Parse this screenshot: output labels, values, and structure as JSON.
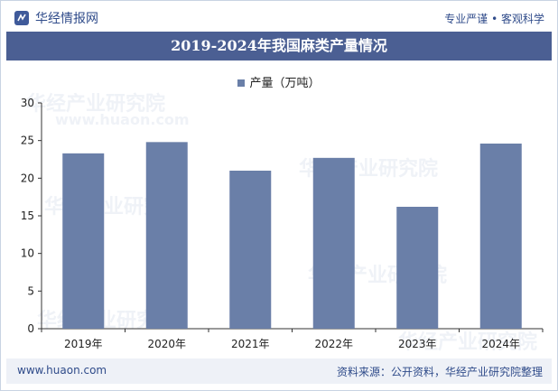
{
  "header": {
    "logo_text": "华经情报网",
    "tagline": "专业严谨 • 客观科学"
  },
  "watermark": {
    "text": "华经产业研究院",
    "url": "www.huaon.com"
  },
  "colors": {
    "bar": "#6a7fa8",
    "title_bg": "#4b5f93",
    "brand": "#2f4b8a"
  },
  "chart_data": {
    "type": "bar",
    "title": "2019-2024年我国麻类产量情况",
    "categories": [
      "2019年",
      "2020年",
      "2021年",
      "2022年",
      "2023年",
      "2024年"
    ],
    "series": [
      {
        "name": "产量（万吨）",
        "values": [
          23.3,
          24.8,
          21.0,
          22.7,
          16.2,
          24.6
        ]
      }
    ],
    "ylim": [
      0,
      30
    ],
    "yticks": [
      0,
      5,
      10,
      15,
      20,
      25,
      30
    ],
    "xlabel": "",
    "ylabel": "",
    "legend": "top-center",
    "grid": false
  },
  "footer": {
    "url": "www.huaon.com",
    "source": "资料来源：公开资料，华经产业研究院整理"
  }
}
